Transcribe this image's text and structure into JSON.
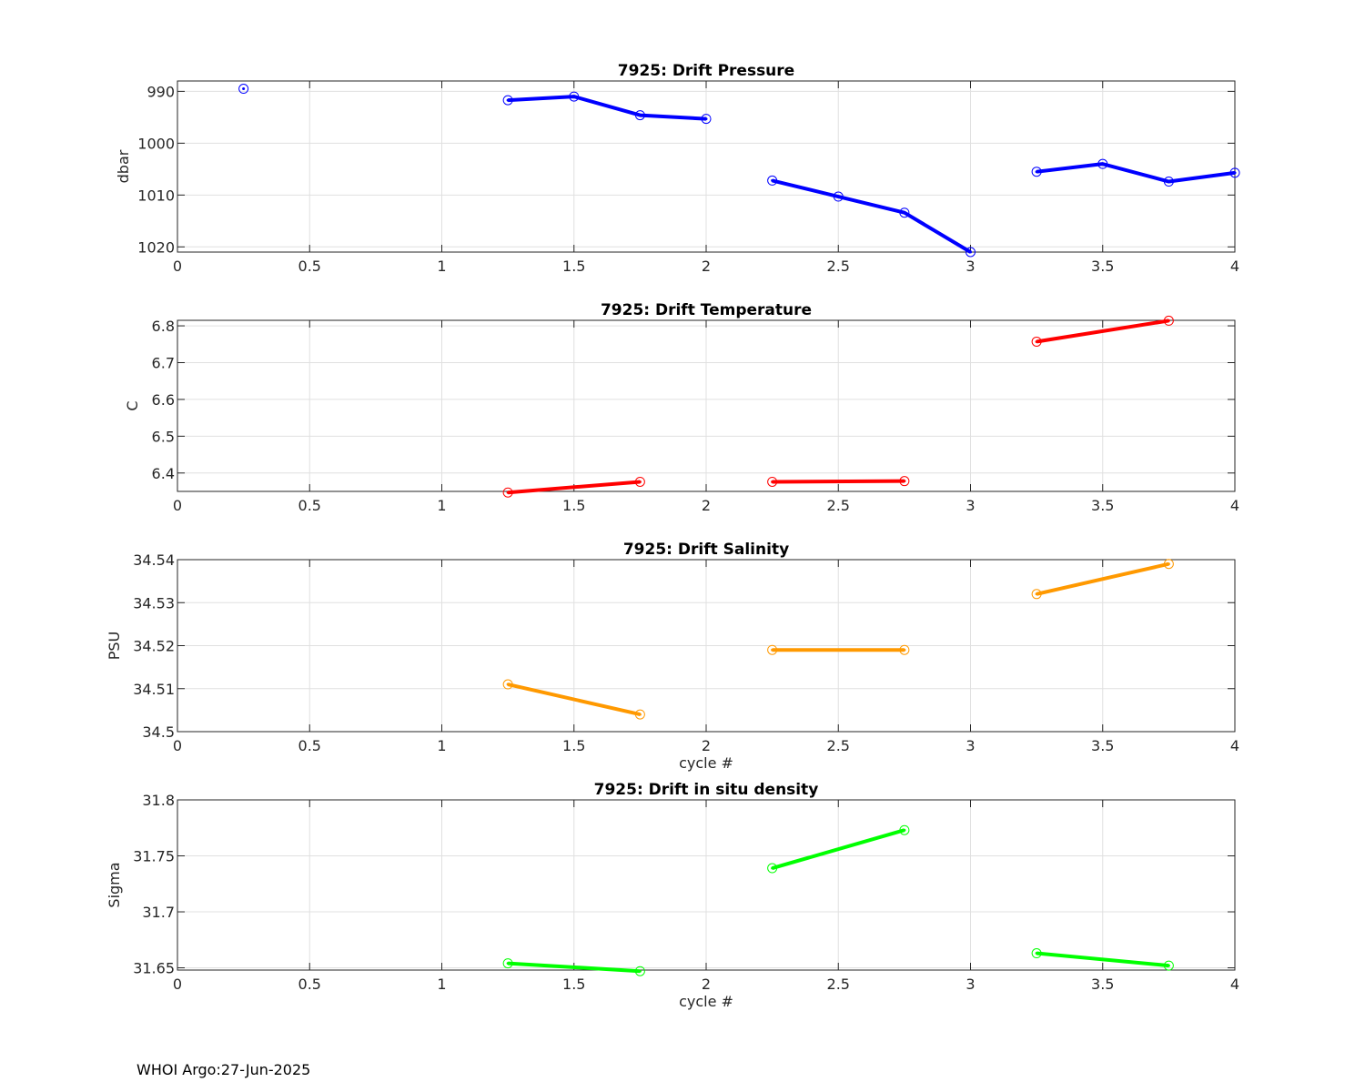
{
  "footer": "WHOI Argo:27-Jun-2025",
  "chart_data": [
    {
      "type": "line",
      "title": "7925: Drift Pressure",
      "ylabel": "dbar",
      "xlabel": "",
      "y_reversed": true,
      "xlim": [
        0,
        4
      ],
      "ylim": [
        988,
        1021
      ],
      "xticks": [
        0,
        0.5,
        1,
        1.5,
        2,
        2.5,
        3,
        3.5,
        4
      ],
      "xtick_labels": [
        "0",
        "0.5",
        "1",
        "1.5",
        "2",
        "2.5",
        "3",
        "3.5",
        "4"
      ],
      "yticks": [
        990,
        1000,
        1010,
        1020
      ],
      "ytick_labels": [
        "990",
        "1000",
        "1010",
        "1020"
      ],
      "grid": true,
      "color": "#0000ff",
      "segments": [
        {
          "x": [
            0.25
          ],
          "y": [
            989.5
          ]
        },
        {
          "x": [
            1.25,
            1.5,
            1.75,
            2.0
          ],
          "y": [
            991.7,
            991.0,
            994.6,
            995.3
          ]
        },
        {
          "x": [
            2.25,
            2.5,
            2.75,
            3.0
          ],
          "y": [
            1007.2,
            1010.3,
            1013.4,
            1021.0
          ]
        },
        {
          "x": [
            3.25,
            3.5,
            3.75,
            4.0
          ],
          "y": [
            1005.5,
            1004.0,
            1007.4,
            1005.7
          ]
        }
      ]
    },
    {
      "type": "line",
      "title": "7925: Drift Temperature",
      "ylabel": "C",
      "xlabel": "",
      "y_reversed": false,
      "xlim": [
        0,
        4
      ],
      "ylim": [
        6.35,
        6.815
      ],
      "xticks": [
        0,
        0.5,
        1,
        1.5,
        2,
        2.5,
        3,
        3.5,
        4
      ],
      "xtick_labels": [
        "0",
        "0.5",
        "1",
        "1.5",
        "2",
        "2.5",
        "3",
        "3.5",
        "4"
      ],
      "yticks": [
        6.4,
        6.5,
        6.6,
        6.7,
        6.8
      ],
      "ytick_labels": [
        "6.4",
        "6.5",
        "6.6",
        "6.7",
        "6.8"
      ],
      "grid": true,
      "color": "#ff0000",
      "segments": [
        {
          "x": [
            1.25,
            1.75
          ],
          "y": [
            6.347,
            6.376
          ]
        },
        {
          "x": [
            2.25,
            2.75
          ],
          "y": [
            6.376,
            6.378
          ]
        },
        {
          "x": [
            3.25,
            3.75
          ],
          "y": [
            6.757,
            6.814
          ]
        }
      ]
    },
    {
      "type": "line",
      "title": "7925: Drift Salinity",
      "ylabel": "PSU",
      "xlabel": "cycle #",
      "y_reversed": false,
      "xlim": [
        0,
        4
      ],
      "ylim": [
        34.5,
        34.54
      ],
      "xticks": [
        0,
        0.5,
        1,
        1.5,
        2,
        2.5,
        3,
        3.5,
        4
      ],
      "xtick_labels": [
        "0",
        "0.5",
        "1",
        "1.5",
        "2",
        "2.5",
        "3",
        "3.5",
        "4"
      ],
      "yticks": [
        34.5,
        34.51,
        34.52,
        34.53,
        34.54
      ],
      "ytick_labels": [
        "34.5",
        "34.51",
        "34.52",
        "34.53",
        "34.54"
      ],
      "grid": true,
      "color": "#ff9900",
      "segments": [
        {
          "x": [
            1.25,
            1.75
          ],
          "y": [
            34.511,
            34.504
          ]
        },
        {
          "x": [
            2.25,
            2.75
          ],
          "y": [
            34.519,
            34.519
          ]
        },
        {
          "x": [
            3.25,
            3.75
          ],
          "y": [
            34.532,
            34.539
          ]
        }
      ]
    },
    {
      "type": "line",
      "title": "7925: Drift in situ density",
      "ylabel": "Sigma",
      "xlabel": "cycle #",
      "y_reversed": false,
      "xlim": [
        0,
        4
      ],
      "ylim": [
        31.648,
        31.8
      ],
      "xticks": [
        0,
        0.5,
        1,
        1.5,
        2,
        2.5,
        3,
        3.5,
        4
      ],
      "xtick_labels": [
        "0",
        "0.5",
        "1",
        "1.5",
        "2",
        "2.5",
        "3",
        "3.5",
        "4"
      ],
      "yticks": [
        31.65,
        31.7,
        31.75,
        31.8
      ],
      "ytick_labels": [
        "31.65",
        "31.7",
        "31.75",
        "31.8"
      ],
      "grid": true,
      "color": "#00ff00",
      "segments": [
        {
          "x": [
            1.25,
            1.75
          ],
          "y": [
            31.654,
            31.647
          ]
        },
        {
          "x": [
            2.25,
            2.75
          ],
          "y": [
            31.739,
            31.773
          ]
        },
        {
          "x": [
            3.25,
            3.75
          ],
          "y": [
            31.663,
            31.652
          ]
        }
      ]
    }
  ]
}
